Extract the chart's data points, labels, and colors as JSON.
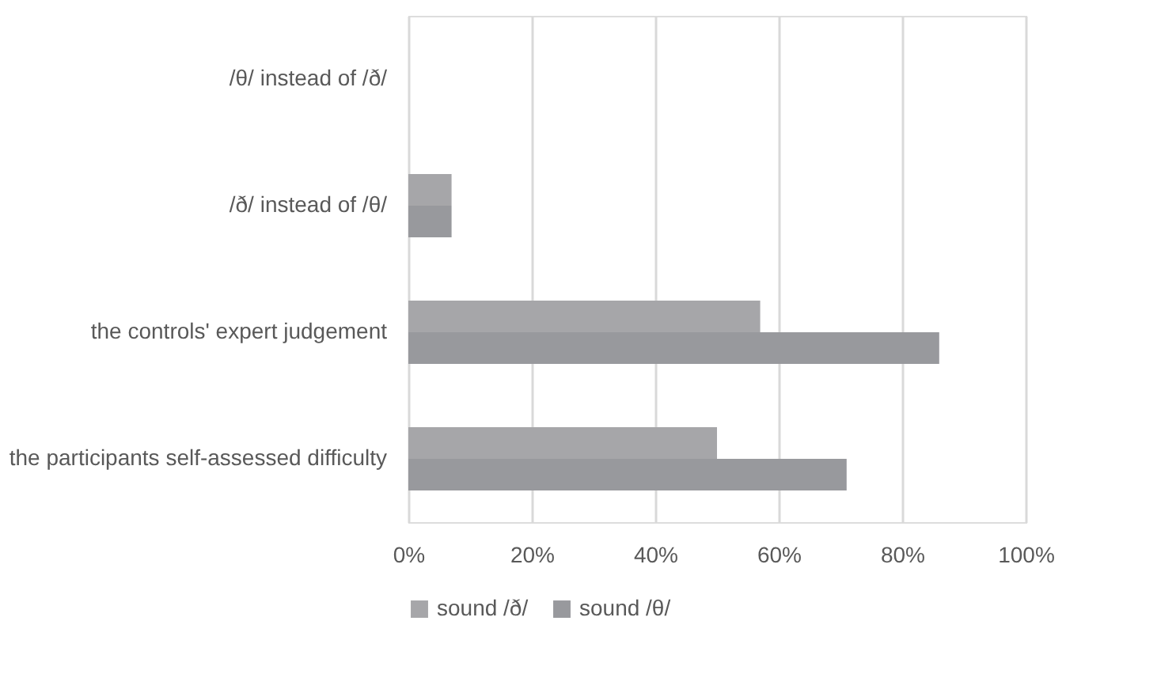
{
  "chart_data": {
    "type": "bar",
    "orientation": "horizontal",
    "categories": [
      "/θ/ instead of /ð/",
      "/ð/  instead of /θ/",
      "the controls' expert judgement",
      "the participants self-assessed difficulty"
    ],
    "series": [
      {
        "name": "sound /ð/",
        "color": "#a6a6a9",
        "values": [
          0,
          7,
          57,
          50
        ]
      },
      {
        "name": "sound /θ/",
        "color": "#98999d",
        "values": [
          0,
          7,
          86,
          71
        ]
      }
    ],
    "xlim": [
      0,
      100
    ],
    "xticks": [
      {
        "value": 0,
        "label": "0%"
      },
      {
        "value": 20,
        "label": "20%"
      },
      {
        "value": 40,
        "label": "40%"
      },
      {
        "value": 60,
        "label": "60%"
      },
      {
        "value": 80,
        "label": "80%"
      },
      {
        "value": 100,
        "label": "100%"
      }
    ],
    "grid": "x",
    "legend": "bottom"
  }
}
